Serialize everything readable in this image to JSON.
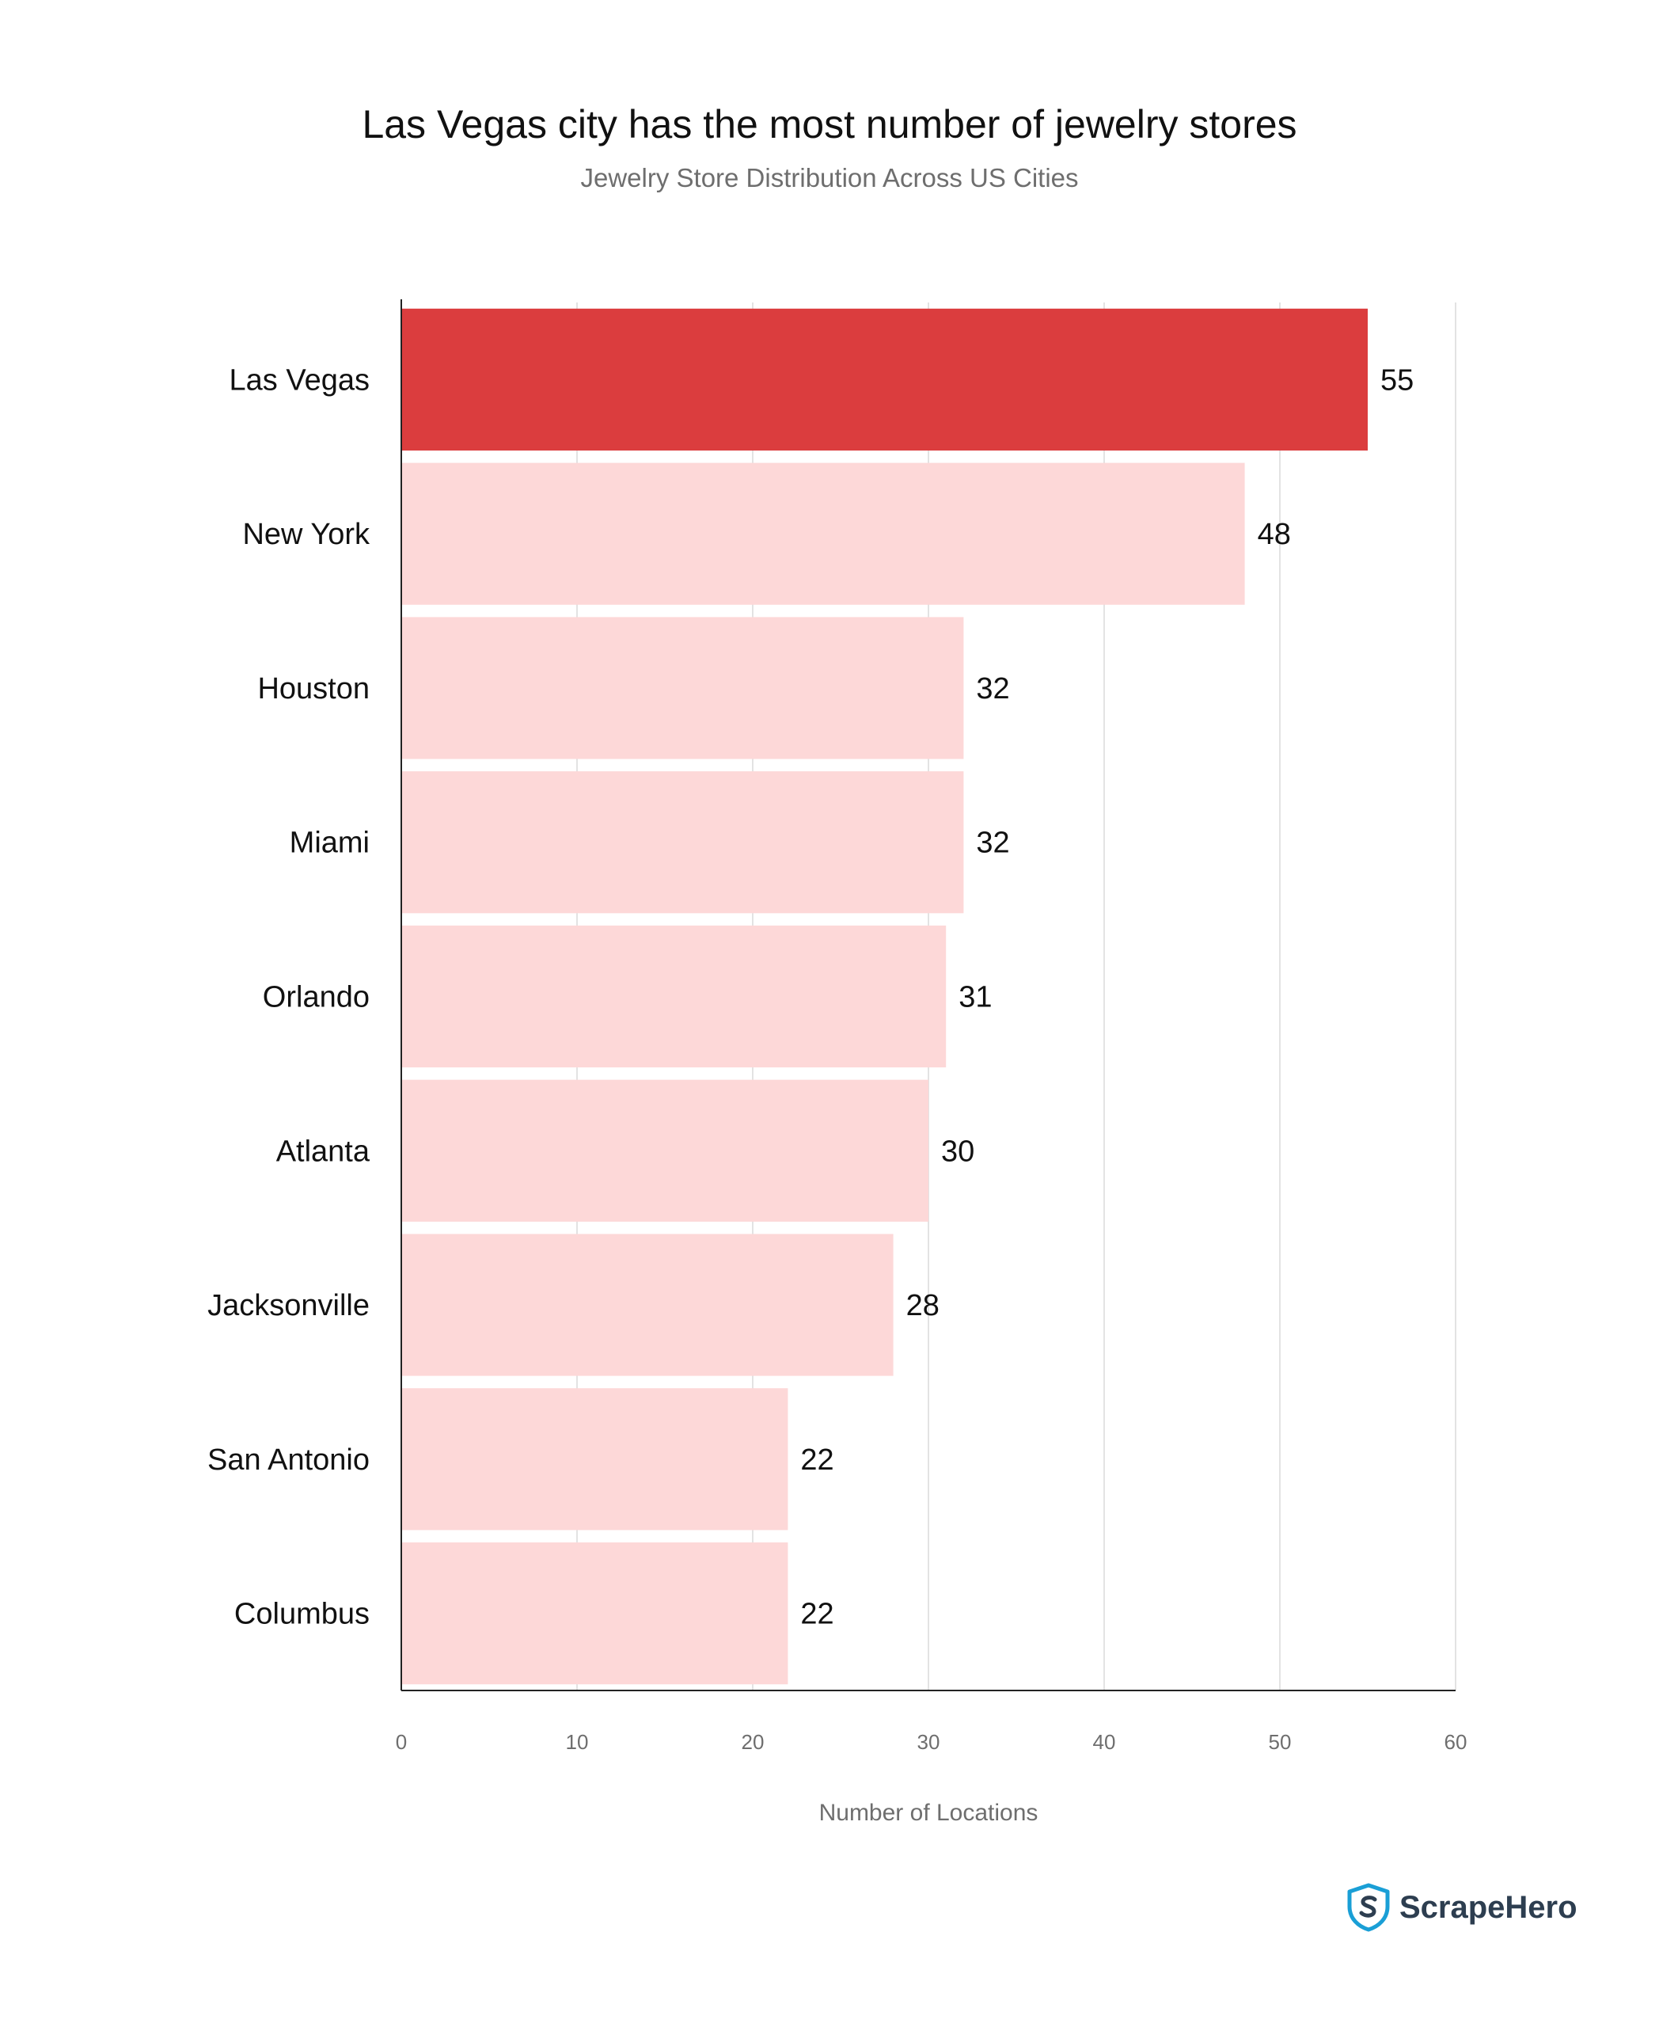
{
  "chart_data": {
    "type": "bar",
    "orientation": "horizontal",
    "title": "Las Vegas city has the most number of jewelry stores",
    "subtitle": "Jewelry Store Distribution Across US Cities",
    "xlabel": "Number of Locations",
    "ylabel": "",
    "categories": [
      "Las Vegas",
      "New York",
      "Houston",
      "Miami",
      "Orlando",
      "Atlanta",
      "Jacksonville",
      "San Antonio",
      "Columbus"
    ],
    "values": [
      55,
      48,
      32,
      32,
      31,
      30,
      28,
      22,
      22
    ],
    "xlim": [
      0,
      60
    ],
    "xticks": [
      0,
      10,
      20,
      30,
      40,
      50,
      60
    ],
    "grid": true,
    "highlight_index": 0,
    "colors": {
      "highlight": "#db3d3e",
      "bar": "#fdd8d8",
      "grid": "#e3e3e3",
      "axis": "#222222"
    }
  },
  "brand": {
    "name": "ScrapeHero",
    "icon": "scrapehero-shield-icon"
  }
}
